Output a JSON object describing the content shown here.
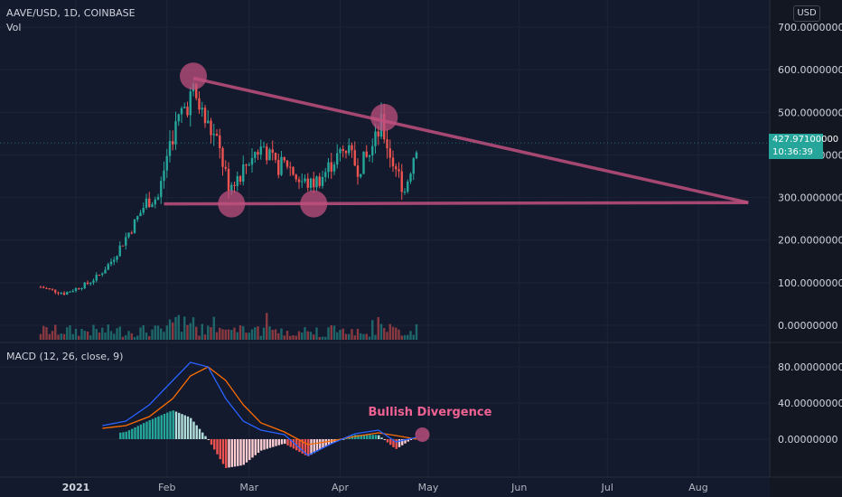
{
  "header": {
    "symbol": "AAVE/USD, 1D, COINBASE",
    "volume_label": "Vol",
    "currency": "USD",
    "macd_label": "MACD (12, 26, close, 9)"
  },
  "price_tag": {
    "price": "427.97100000",
    "countdown": "10:36:39"
  },
  "colors": {
    "background": "#131a2e",
    "up": "#26a69a",
    "down": "#ef5350",
    "pattern": "#c0507f",
    "macd_line": "#2962ff",
    "signal_line": "#ff6d00"
  },
  "annotation": {
    "text": "Bullish Divergence"
  },
  "chart_data": [
    {
      "type": "candlestick",
      "title": "AAVE/USD, 1D, COINBASE",
      "y_ticks": [
        "700.00000000",
        "600.00000000",
        "500.00000000",
        "400.00000000",
        "300.00000000",
        "200.00000000",
        "100.00000000",
        "0.00000000"
      ],
      "y_range": [
        0,
        700
      ],
      "x_ticks": [
        "2021",
        "Feb",
        "Mar",
        "Apr",
        "May",
        "Jun",
        "Jul",
        "Aug"
      ],
      "close_series": [
        {
          "date": "2020-12-20",
          "close": 90
        },
        {
          "date": "2020-12-24",
          "close": 82
        },
        {
          "date": "2020-12-28",
          "close": 75
        },
        {
          "date": "2021-01-01",
          "close": 86
        },
        {
          "date": "2021-01-05",
          "close": 98
        },
        {
          "date": "2021-01-09",
          "close": 118
        },
        {
          "date": "2021-01-13",
          "close": 150
        },
        {
          "date": "2021-01-17",
          "close": 195
        },
        {
          "date": "2021-01-21",
          "close": 240
        },
        {
          "date": "2021-01-25",
          "close": 290
        },
        {
          "date": "2021-01-29",
          "close": 300
        },
        {
          "date": "2021-02-02",
          "close": 430
        },
        {
          "date": "2021-02-06",
          "close": 500
        },
        {
          "date": "2021-02-10",
          "close": 545
        },
        {
          "date": "2021-02-14",
          "close": 480
        },
        {
          "date": "2021-02-18",
          "close": 430
        },
        {
          "date": "2021-02-22",
          "close": 330
        },
        {
          "date": "2021-02-26",
          "close": 355
        },
        {
          "date": "2021-03-02",
          "close": 400
        },
        {
          "date": "2021-03-06",
          "close": 420
        },
        {
          "date": "2021-03-10",
          "close": 370
        },
        {
          "date": "2021-03-14",
          "close": 380
        },
        {
          "date": "2021-03-18",
          "close": 340
        },
        {
          "date": "2021-03-22",
          "close": 330
        },
        {
          "date": "2021-03-26",
          "close": 350
        },
        {
          "date": "2021-03-30",
          "close": 390
        },
        {
          "date": "2021-04-03",
          "close": 410
        },
        {
          "date": "2021-04-07",
          "close": 370
        },
        {
          "date": "2021-04-11",
          "close": 400
        },
        {
          "date": "2021-04-15",
          "close": 470
        },
        {
          "date": "2021-04-19",
          "close": 380
        },
        {
          "date": "2021-04-23",
          "close": 315
        },
        {
          "date": "2021-04-27",
          "close": 428
        }
      ],
      "annotations": {
        "resistance_line": {
          "from": {
            "date": "2021-02-10",
            "value": 580
          },
          "to": {
            "date": "2021-08-18",
            "value": 288
          }
        },
        "support_line": {
          "from": {
            "date": "2021-01-31",
            "value": 285
          },
          "to": {
            "date": "2021-08-18",
            "value": 288
          }
        },
        "highlighted_points": [
          {
            "date": "2021-02-10",
            "value": 585
          },
          {
            "date": "2021-04-16",
            "value": 488
          },
          {
            "date": "2021-02-23",
            "value": 285
          },
          {
            "date": "2021-03-23",
            "value": 285
          }
        ]
      }
    },
    {
      "type": "macd",
      "title": "MACD (12, 26, close, 9)",
      "y_ticks": [
        "80.00000000",
        "40.00000000",
        "0.00000000"
      ],
      "y_range": [
        -30,
        95
      ],
      "macd": [
        {
          "date": "2021-01-10",
          "value": 15
        },
        {
          "date": "2021-01-18",
          "value": 20
        },
        {
          "date": "2021-01-26",
          "value": 38
        },
        {
          "date": "2021-02-03",
          "value": 65
        },
        {
          "date": "2021-02-09",
          "value": 85
        },
        {
          "date": "2021-02-15",
          "value": 80
        },
        {
          "date": "2021-02-21",
          "value": 45
        },
        {
          "date": "2021-02-27",
          "value": 20
        },
        {
          "date": "2021-03-05",
          "value": 10
        },
        {
          "date": "2021-03-13",
          "value": 5
        },
        {
          "date": "2021-03-21",
          "value": -18
        },
        {
          "date": "2021-03-29",
          "value": -5
        },
        {
          "date": "2021-04-06",
          "value": 6
        },
        {
          "date": "2021-04-14",
          "value": 10
        },
        {
          "date": "2021-04-20",
          "value": -3
        },
        {
          "date": "2021-04-27",
          "value": 2
        }
      ],
      "signal": [
        {
          "date": "2021-01-10",
          "value": 12
        },
        {
          "date": "2021-01-18",
          "value": 15
        },
        {
          "date": "2021-01-26",
          "value": 25
        },
        {
          "date": "2021-02-03",
          "value": 45
        },
        {
          "date": "2021-02-09",
          "value": 70
        },
        {
          "date": "2021-02-15",
          "value": 80
        },
        {
          "date": "2021-02-21",
          "value": 65
        },
        {
          "date": "2021-02-27",
          "value": 38
        },
        {
          "date": "2021-03-05",
          "value": 18
        },
        {
          "date": "2021-03-13",
          "value": 8
        },
        {
          "date": "2021-03-21",
          "value": -6
        },
        {
          "date": "2021-03-29",
          "value": -2
        },
        {
          "date": "2021-04-06",
          "value": 3
        },
        {
          "date": "2021-04-14",
          "value": 7
        },
        {
          "date": "2021-04-20",
          "value": 4
        },
        {
          "date": "2021-04-27",
          "value": 0
        }
      ],
      "annotations": [
        {
          "text": "Bullish Divergence",
          "date": "2021-04-29",
          "value": 5
        }
      ]
    }
  ]
}
